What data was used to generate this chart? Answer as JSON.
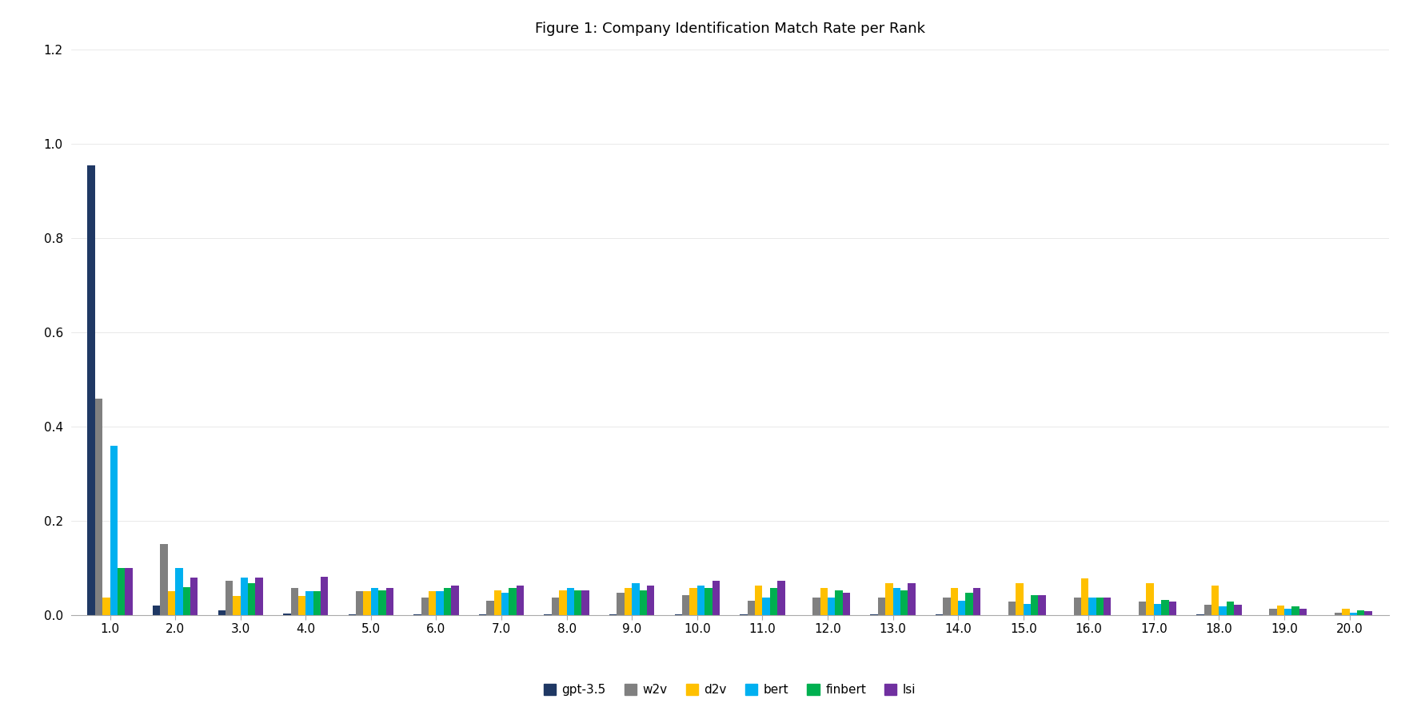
{
  "title": "Figure 1: Company Identification Match Rate per Rank",
  "ranks": [
    1,
    2,
    3,
    4,
    5,
    6,
    7,
    8,
    9,
    10,
    11,
    12,
    13,
    14,
    15,
    16,
    17,
    18,
    19,
    20
  ],
  "series": {
    "gpt-3.5": [
      0.955,
      0.02,
      0.01,
      0.004,
      0.002,
      0.002,
      0.001,
      0.001,
      0.001,
      0.001,
      0.001,
      0.0,
      0.001,
      0.001,
      0.0,
      0.0,
      0.0,
      0.001,
      0.0,
      0.0
    ],
    "w2v": [
      0.46,
      0.15,
      0.072,
      0.058,
      0.05,
      0.038,
      0.03,
      0.038,
      0.048,
      0.042,
      0.03,
      0.038,
      0.038,
      0.038,
      0.028,
      0.038,
      0.028,
      0.022,
      0.013,
      0.005
    ],
    "d2v": [
      0.038,
      0.05,
      0.04,
      0.04,
      0.05,
      0.05,
      0.052,
      0.052,
      0.058,
      0.058,
      0.062,
      0.058,
      0.068,
      0.058,
      0.068,
      0.078,
      0.068,
      0.062,
      0.02,
      0.013
    ],
    "bert": [
      0.36,
      0.1,
      0.08,
      0.05,
      0.058,
      0.05,
      0.048,
      0.058,
      0.068,
      0.062,
      0.038,
      0.038,
      0.058,
      0.03,
      0.024,
      0.038,
      0.024,
      0.018,
      0.013,
      0.005
    ],
    "finbert": [
      0.1,
      0.06,
      0.068,
      0.05,
      0.052,
      0.058,
      0.058,
      0.052,
      0.052,
      0.058,
      0.058,
      0.052,
      0.052,
      0.048,
      0.042,
      0.038,
      0.032,
      0.028,
      0.018,
      0.01
    ],
    "lsi": [
      0.1,
      0.08,
      0.08,
      0.082,
      0.058,
      0.062,
      0.062,
      0.052,
      0.062,
      0.072,
      0.072,
      0.048,
      0.068,
      0.058,
      0.042,
      0.038,
      0.028,
      0.022,
      0.013,
      0.008
    ]
  },
  "colors": {
    "gpt-3.5": "#1f3864",
    "w2v": "#808080",
    "d2v": "#ffc000",
    "bert": "#00b0f0",
    "finbert": "#00b050",
    "lsi": "#7030a0"
  },
  "ylim": [
    0,
    1.2
  ],
  "yticks": [
    0.0,
    0.2,
    0.4,
    0.6,
    0.8,
    1.0,
    1.2
  ],
  "background_color": "#ffffff",
  "title_fontsize": 13
}
